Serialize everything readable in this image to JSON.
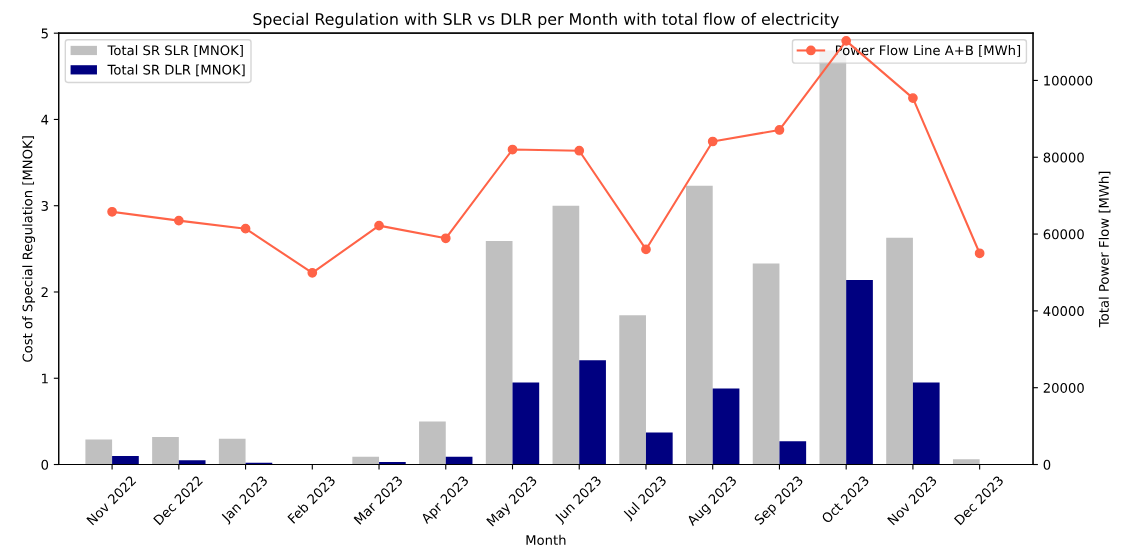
{
  "chart_data": {
    "type": "bar",
    "title": "Special Regulation with SLR vs DLR per Month with total flow of electricity",
    "xlabel": "Month",
    "ylabel": "Cost of Special Regulation [MNOK]",
    "y2label": "Total Power Flow [MWh]",
    "categories": [
      "Nov 2022",
      "Dec 2022",
      "Jan 2023",
      "Feb 2023",
      "Mar 2023",
      "Apr 2023",
      "May 2023",
      "Jun 2023",
      "Jul 2023",
      "Aug 2023",
      "Sep 2023",
      "Oct 2023",
      "Nov 2023",
      "Dec 2023"
    ],
    "series": [
      {
        "name": "Total SR SLR [MNOK]",
        "color": "#c0c0c0",
        "values": [
          0.29,
          0.32,
          0.3,
          0.0,
          0.09,
          0.5,
          2.59,
          3.0,
          1.73,
          3.23,
          2.33,
          4.8,
          2.63,
          0.06
        ]
      },
      {
        "name": "Total SR DLR [MNOK]",
        "color": "#000080",
        "values": [
          0.1,
          0.05,
          0.02,
          0.0,
          0.03,
          0.09,
          0.95,
          1.21,
          0.37,
          0.88,
          0.27,
          2.14,
          0.95,
          0.0
        ]
      },
      {
        "name": "Power Flow Line A+B [MWh]",
        "type": "line",
        "axis": "y2",
        "color": "#ff6347",
        "marker": "circle",
        "values": [
          65800,
          63500,
          61400,
          49900,
          62200,
          58900,
          82000,
          81700,
          56000,
          84100,
          87100,
          110300,
          95400,
          55000
        ]
      }
    ],
    "ylim": [
      0,
      5
    ],
    "yticks": [
      0,
      1,
      2,
      3,
      4,
      5
    ],
    "y2lim": [
      0,
      112300
    ],
    "y2ticks": [
      0,
      20000,
      40000,
      60000,
      80000,
      100000
    ],
    "legend": "top left",
    "grid": false
  }
}
